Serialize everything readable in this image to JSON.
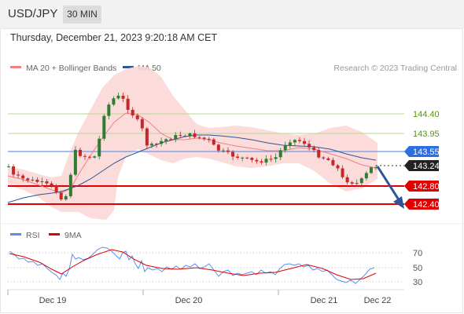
{
  "header": {
    "symbol": "USD/JPY",
    "timeframe": "30 MIN"
  },
  "datetime": "Thursday, December 21, 2023 9:20:18 AM CET",
  "legend": {
    "ma20_label": "MA 20 + Bollinger Bands",
    "ma50_label": "MA 50",
    "ma20_color": "#f08080",
    "ma50_color": "#2f5597"
  },
  "credit": "Research © 2023 Trading Central",
  "levels": [
    {
      "value": "144.40",
      "color": "#4f9a00",
      "style": "text"
    },
    {
      "value": "143.95",
      "color": "#4f9a00",
      "style": "text"
    },
    {
      "value": "143.55",
      "color": "#2b6fe3",
      "style": "box"
    },
    {
      "value": "143.24",
      "color": "#222222",
      "style": "box"
    },
    {
      "value": "142.80",
      "color": "#e00000",
      "style": "box"
    },
    {
      "value": "142.40",
      "color": "#e00000",
      "style": "box"
    }
  ],
  "rsi_legend": {
    "rsi_label": "RSI",
    "ma_label": "9MA",
    "rsi_color": "#5b8def",
    "ma_color": "#e00000"
  },
  "rsi_levels": [
    "70",
    "50",
    "30"
  ],
  "x_labels": [
    "Dec 19",
    "Dec 20",
    "Dec 21",
    "Dec 22"
  ],
  "forecast_arrow": {
    "direction": "down",
    "color": "#2f5597"
  }
}
